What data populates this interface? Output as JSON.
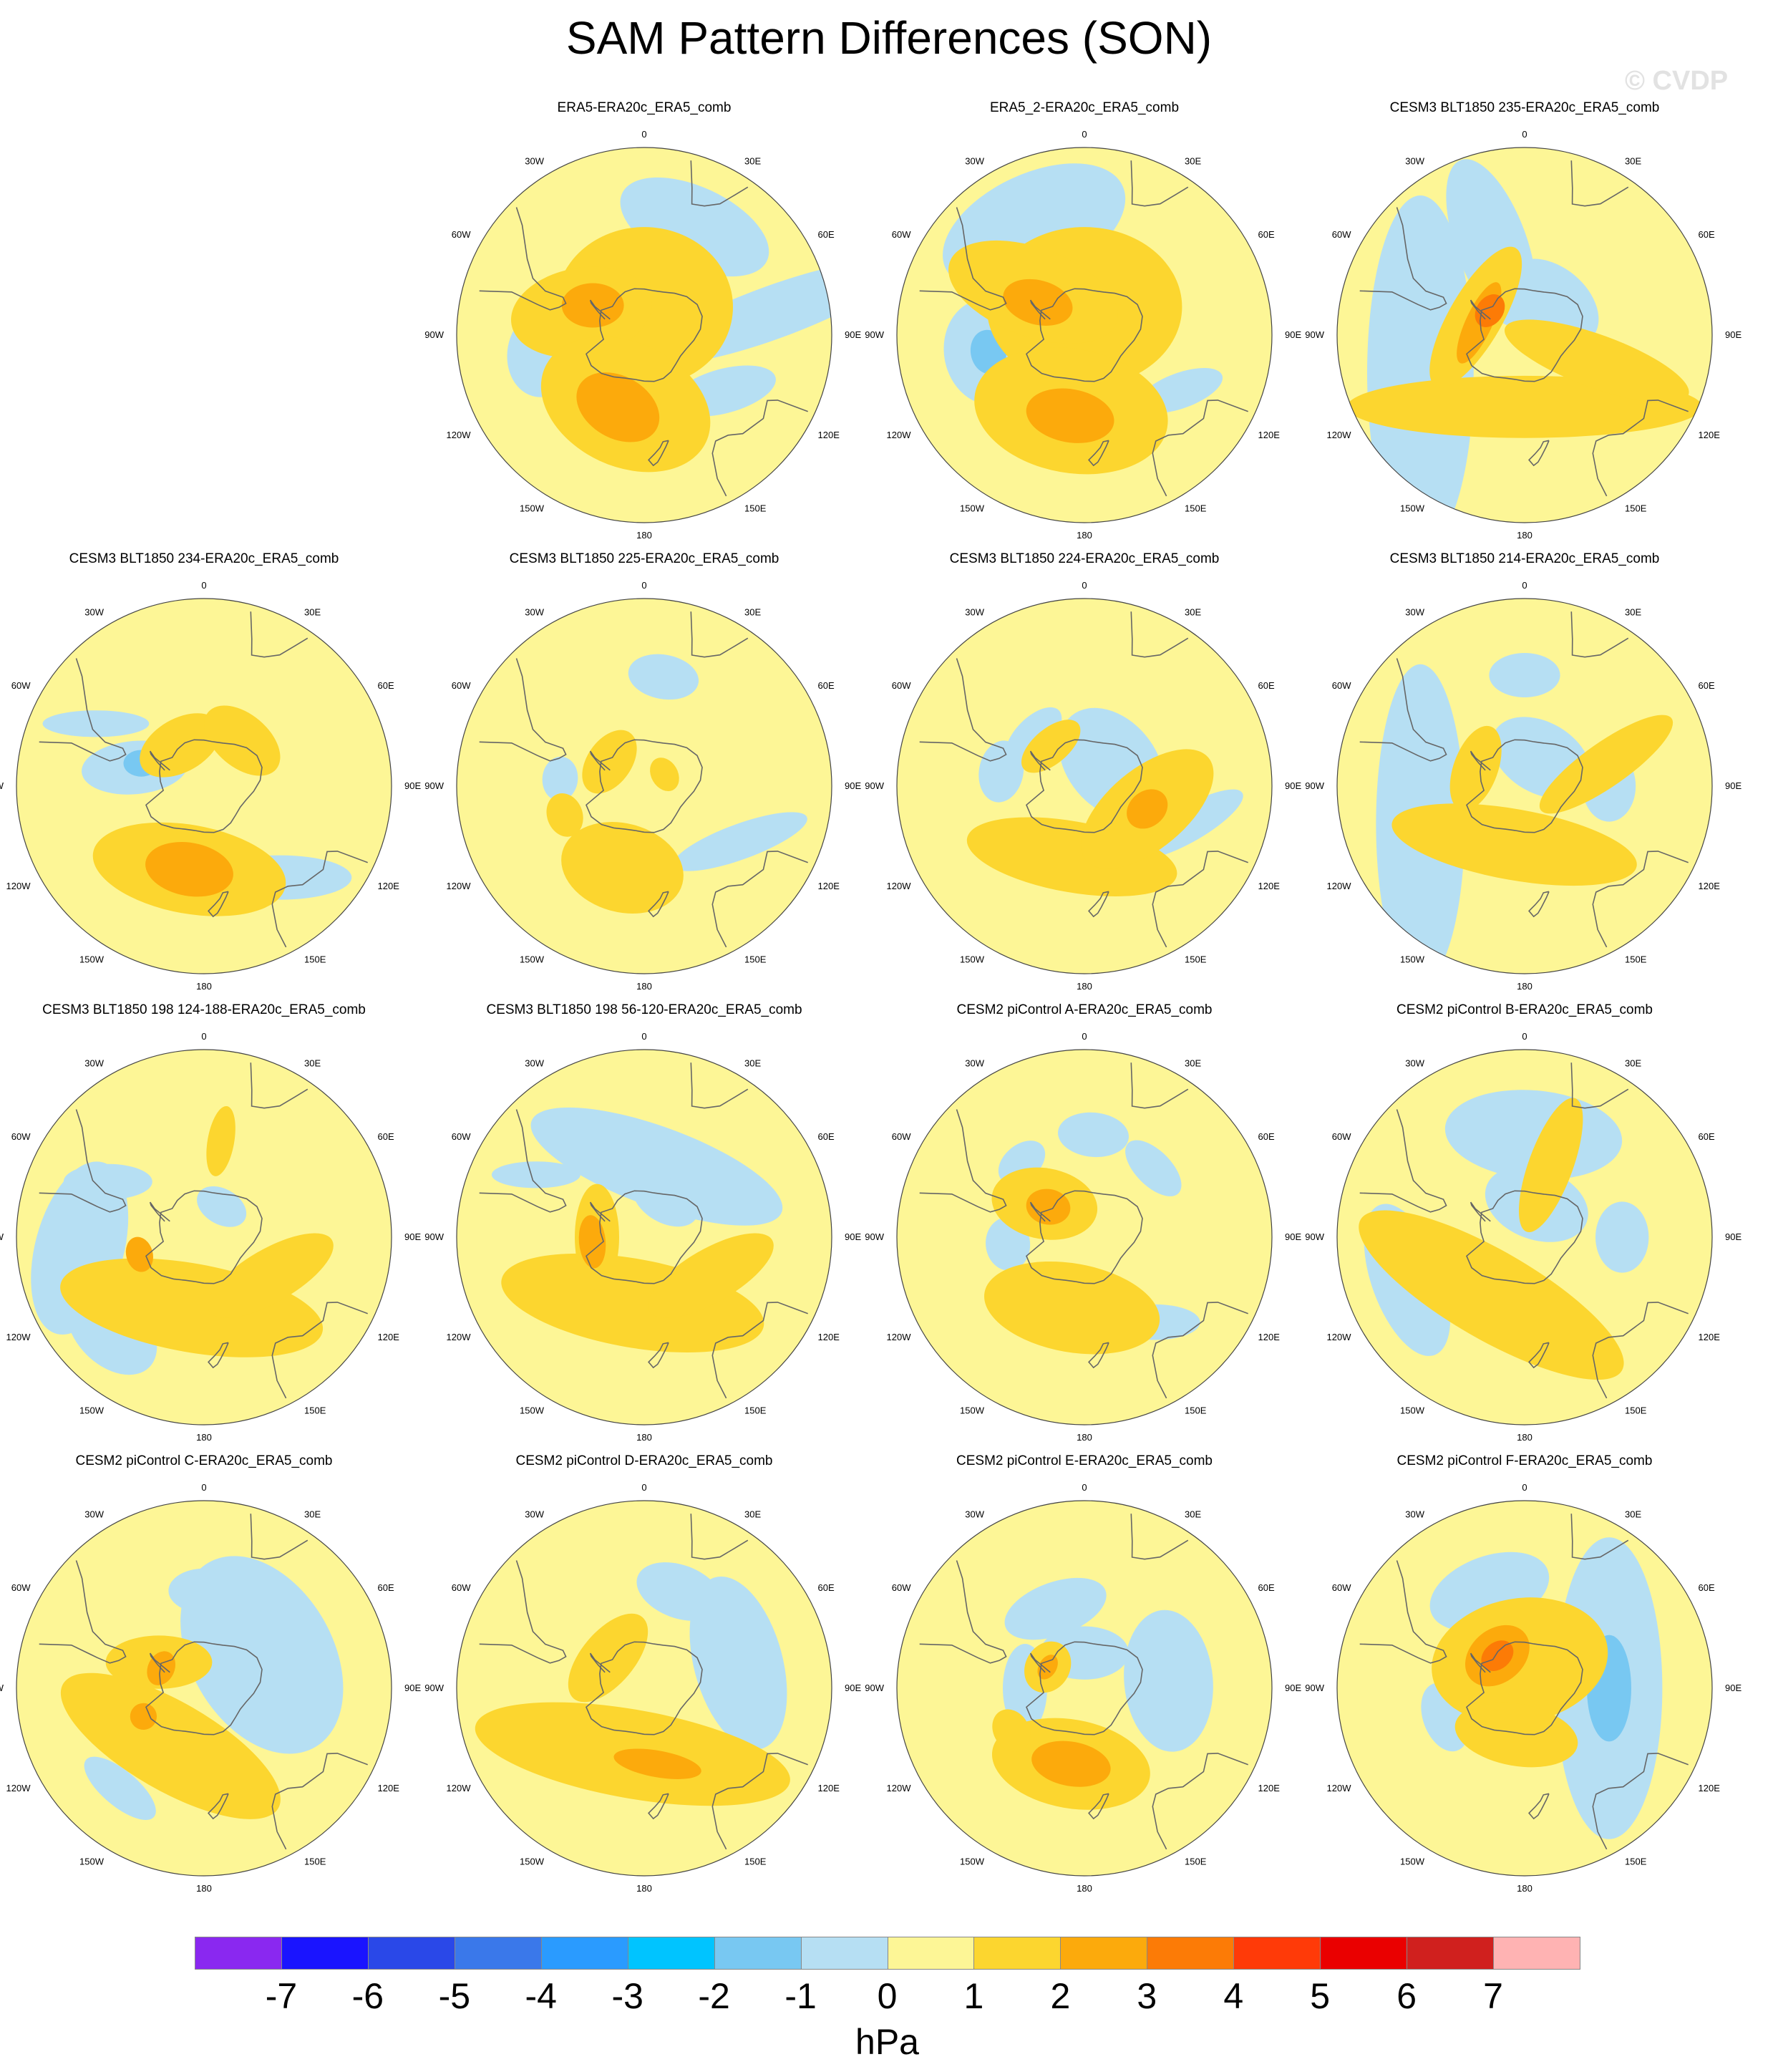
{
  "title": "SAM Pattern Differences (SON)",
  "watermark": "© CVDP",
  "longitude_labels": [
    "0",
    "30E",
    "60E",
    "90E",
    "120E",
    "150E",
    "180",
    "150W",
    "120W",
    "90W",
    "60W",
    "30W"
  ],
  "colors": {
    "below_neg7": "#8a28f0",
    "neg7_neg6": "#1a14ff",
    "neg6_neg5": "#2a48e8",
    "neg5_neg4": "#3a78ea",
    "neg4_neg3": "#2a9bff",
    "neg3_neg2": "#00c4ff",
    "neg2_neg1": "#78c8f2",
    "neg1_0": "#b6dff3",
    "zero_1": "#fdf696",
    "one_2": "#fcd62f",
    "two_3": "#fcaa0c",
    "three_4": "#fc7b06",
    "four_5": "#ff3a08",
    "five_6": "#ea0000",
    "six_7": "#d0201e",
    "above_7": "#ffb3b3",
    "continent": "#666666"
  },
  "colorbar": {
    "labels": [
      "-7",
      "-6",
      "-5",
      "-4",
      "-3",
      "-2",
      "-1",
      "0",
      "1",
      "2",
      "3",
      "4",
      "5",
      "6",
      "7"
    ],
    "units": "hPa"
  },
  "panels": [
    {
      "id": "p1",
      "title": "ERA5-ERA20c_ERA5_comb",
      "features": [
        {
          "lon": 25,
          "lat": -42,
          "a": 18,
          "b": 9,
          "rot": 0,
          "level": -1
        },
        {
          "lon": -100,
          "lat": -48,
          "a": 10,
          "b": 8,
          "rot": 20,
          "level": -1
        },
        {
          "lon": 125,
          "lat": -50,
          "a": 12,
          "b": 5,
          "rot": 40,
          "level": -1
        },
        {
          "lon": 80,
          "lat": -38,
          "a": 30,
          "b": 6,
          "rot": 80,
          "level": -1
        },
        {
          "lon": 0,
          "lat": -78,
          "a": 20,
          "b": 18,
          "rot": 0,
          "level": 1
        },
        {
          "lon": -70,
          "lat": -62,
          "a": 16,
          "b": 10,
          "rot": 60,
          "level": 1
        },
        {
          "lon": -165,
          "lat": -60,
          "a": 20,
          "b": 14,
          "rot": 10,
          "level": 1
        },
        {
          "lon": -60,
          "lat": -65,
          "a": 7,
          "b": 5,
          "rot": 60,
          "level": 2
        },
        {
          "lon": -160,
          "lat": -58,
          "a": 10,
          "b": 7,
          "rot": 10,
          "level": 2
        }
      ]
    },
    {
      "id": "p2",
      "title": "ERA5_2-ERA20c_ERA5_comb",
      "features": [
        {
          "lon": -25,
          "lat": -42,
          "a": 22,
          "b": 12,
          "rot": 0,
          "level": -1
        },
        {
          "lon": -100,
          "lat": -50,
          "a": 12,
          "b": 10,
          "rot": 0,
          "level": -1
        },
        {
          "lon": -100,
          "lat": -50,
          "a": 5,
          "b": 4,
          "rot": 0,
          "level": -2
        },
        {
          "lon": 120,
          "lat": -45,
          "a": 10,
          "b": 4,
          "rot": 40,
          "level": -1
        },
        {
          "lon": 0,
          "lat": -78,
          "a": 22,
          "b": 18,
          "rot": 0,
          "level": 1
        },
        {
          "lon": -50,
          "lat": -62,
          "a": 20,
          "b": 10,
          "rot": 70,
          "level": 1
        },
        {
          "lon": -170,
          "lat": -58,
          "a": 22,
          "b": 14,
          "rot": 0,
          "level": 1
        },
        {
          "lon": -55,
          "lat": -66,
          "a": 8,
          "b": 5,
          "rot": 70,
          "level": 2
        },
        {
          "lon": -170,
          "lat": -56,
          "a": 10,
          "b": 6,
          "rot": 0,
          "level": 2
        }
      ]
    },
    {
      "id": "p3",
      "title": "CESM3 BLT1850 235-ERA20c_ERA5_comb",
      "features": [
        {
          "lon": -110,
          "lat": -45,
          "a": 40,
          "b": 12,
          "rot": 20,
          "level": -1
        },
        {
          "lon": -20,
          "lat": -50,
          "a": 20,
          "b": 8,
          "rot": 90,
          "level": -1
        },
        {
          "lon": 40,
          "lat": -72,
          "a": 12,
          "b": 8,
          "rot": 0,
          "level": -1
        },
        {
          "lon": 180,
          "lat": -60,
          "a": 40,
          "b": 7,
          "rot": 0,
          "level": 1
        },
        {
          "lon": -70,
          "lat": -68,
          "a": 18,
          "b": 6,
          "rot": 10,
          "level": 1
        },
        {
          "lon": 110,
          "lat": -58,
          "a": 22,
          "b": 6,
          "rot": 90,
          "level": 1
        },
        {
          "lon": -75,
          "lat": -70,
          "a": 10,
          "b": 3,
          "rot": 10,
          "level": 2
        },
        {
          "lon": -55,
          "lat": -72,
          "a": 4,
          "b": 3,
          "rot": 0,
          "level": 3
        }
      ]
    },
    {
      "id": "p4",
      "title": "CESM3 BLT1850 234-ERA20c_ERA5_comb",
      "features": [
        {
          "lon": -75,
          "lat": -60,
          "a": 12,
          "b": 6,
          "rot": 70,
          "level": -1
        },
        {
          "lon": -70,
          "lat": -62,
          "a": 4,
          "b": 3,
          "rot": 70,
          "level": -2
        },
        {
          "lon": 140,
          "lat": -42,
          "a": 16,
          "b": 5,
          "rot": 40,
          "level": -1
        },
        {
          "lon": -60,
          "lat": -40,
          "a": 12,
          "b": 3,
          "rot": 60,
          "level": -1
        },
        {
          "lon": -170,
          "lat": -55,
          "a": 22,
          "b": 10,
          "rot": 0,
          "level": 1
        },
        {
          "lon": -30,
          "lat": -70,
          "a": 10,
          "b": 6,
          "rot": 0,
          "level": 1
        },
        {
          "lon": 40,
          "lat": -65,
          "a": 10,
          "b": 6,
          "rot": 0,
          "level": 1
        },
        {
          "lon": -170,
          "lat": -55,
          "a": 10,
          "b": 6,
          "rot": 0,
          "level": 2
        }
      ]
    },
    {
      "id": "p5",
      "title": "CESM3 BLT1850 225-ERA20c_ERA5_comb",
      "features": [
        {
          "lon": 10,
          "lat": -45,
          "a": 8,
          "b": 5,
          "rot": 0,
          "level": -1
        },
        {
          "lon": -85,
          "lat": -55,
          "a": 5,
          "b": 4,
          "rot": 0,
          "level": -1
        },
        {
          "lon": 120,
          "lat": -45,
          "a": 16,
          "b": 4,
          "rot": 40,
          "level": -1
        },
        {
          "lon": -55,
          "lat": -72,
          "a": 8,
          "b": 5,
          "rot": 0,
          "level": 1
        },
        {
          "lon": -165,
          "lat": -55,
          "a": 14,
          "b": 10,
          "rot": 0,
          "level": 1
        },
        {
          "lon": -110,
          "lat": -55,
          "a": 5,
          "b": 4,
          "rot": 0,
          "level": 1
        },
        {
          "lon": 60,
          "lat": -80,
          "a": 4,
          "b": 3,
          "rot": 0,
          "level": 1
        }
      ]
    },
    {
      "id": "p6",
      "title": "CESM3 BLT1850 224-ERA20c_ERA5_comb",
      "features": [
        {
          "lon": 50,
          "lat": -75,
          "a": 14,
          "b": 10,
          "rot": 0,
          "level": -1
        },
        {
          "lon": -80,
          "lat": -55,
          "a": 7,
          "b": 5,
          "rot": 0,
          "level": -1
        },
        {
          "lon": -45,
          "lat": -60,
          "a": 8,
          "b": 4,
          "rot": 0,
          "level": -1
        },
        {
          "lon": 110,
          "lat": -45,
          "a": 14,
          "b": 4,
          "rot": 40,
          "level": -1
        },
        {
          "lon": -170,
          "lat": -60,
          "a": 24,
          "b": 8,
          "rot": 0,
          "level": 1
        },
        {
          "lon": 110,
          "lat": -62,
          "a": 18,
          "b": 9,
          "rot": 30,
          "level": 1
        },
        {
          "lon": -40,
          "lat": -68,
          "a": 8,
          "b": 4,
          "rot": 0,
          "level": 1
        },
        {
          "lon": 110,
          "lat": -62,
          "a": 5,
          "b": 4,
          "rot": 30,
          "level": 2
        }
      ]
    },
    {
      "id": "p7",
      "title": "CESM3 BLT1850 214-ERA20c_ERA5_comb",
      "features": [
        {
          "lon": -110,
          "lat": -45,
          "a": 36,
          "b": 10,
          "rot": 20,
          "level": -1
        },
        {
          "lon": 0,
          "lat": -45,
          "a": 8,
          "b": 5,
          "rot": 0,
          "level": -1
        },
        {
          "lon": 30,
          "lat": -76,
          "a": 12,
          "b": 8,
          "rot": 0,
          "level": -1
        },
        {
          "lon": 90,
          "lat": -55,
          "a": 8,
          "b": 6,
          "rot": 0,
          "level": -1
        },
        {
          "lon": -170,
          "lat": -65,
          "a": 28,
          "b": 8,
          "rot": 0,
          "level": 1
        },
        {
          "lon": 75,
          "lat": -55,
          "a": 18,
          "b": 5,
          "rot": 70,
          "level": 1
        },
        {
          "lon": -70,
          "lat": -68,
          "a": 10,
          "b": 5,
          "rot": 0,
          "level": 1
        }
      ]
    },
    {
      "id": "p8",
      "title": "CESM3 BLT1850 198 124-188-ERA20c_ERA5_comb",
      "features": [
        {
          "lon": -95,
          "lat": -40,
          "a": 20,
          "b": 10,
          "rot": 20,
          "level": -1
        },
        {
          "lon": -135,
          "lat": -38,
          "a": 12,
          "b": 8,
          "rot": 0,
          "level": -1
        },
        {
          "lon": -60,
          "lat": -45,
          "a": 10,
          "b": 4,
          "rot": 60,
          "level": -1
        },
        {
          "lon": 30,
          "lat": -75,
          "a": 6,
          "b": 4,
          "rot": 0,
          "level": -1
        },
        {
          "lon": -170,
          "lat": -60,
          "a": 30,
          "b": 10,
          "rot": 0,
          "level": 1
        },
        {
          "lon": 120,
          "lat": -58,
          "a": 16,
          "b": 6,
          "rot": 30,
          "level": 1
        },
        {
          "lon": 10,
          "lat": -50,
          "a": 8,
          "b": 3,
          "rot": 90,
          "level": 1
        },
        {
          "lon": -105,
          "lat": -62,
          "a": 4,
          "b": 3,
          "rot": 0,
          "level": 2
        }
      ]
    },
    {
      "id": "p9",
      "title": "CESM3 BLT1850 198 56-120-ERA20c_ERA5_comb",
      "features": [
        {
          "lon": 10,
          "lat": -60,
          "a": 30,
          "b": 9,
          "rot": 10,
          "level": -1
        },
        {
          "lon": 30,
          "lat": -72,
          "a": 8,
          "b": 5,
          "rot": 0,
          "level": -1
        },
        {
          "lon": -60,
          "lat": -40,
          "a": 10,
          "b": 3,
          "rot": 60,
          "level": -1
        },
        {
          "lon": -170,
          "lat": -62,
          "a": 30,
          "b": 10,
          "rot": 0,
          "level": 1
        },
        {
          "lon": 120,
          "lat": -58,
          "a": 16,
          "b": 6,
          "rot": 30,
          "level": 1
        },
        {
          "lon": -90,
          "lat": -70,
          "a": 12,
          "b": 5,
          "rot": 0,
          "level": 1
        },
        {
          "lon": -95,
          "lat": -68,
          "a": 6,
          "b": 3,
          "rot": 0,
          "level": 2
        }
      ]
    },
    {
      "id": "p10",
      "title": "CESM2 piControl A-ERA20c_ERA5_comb",
      "features": [
        {
          "lon": 5,
          "lat": -48,
          "a": 8,
          "b": 5,
          "rot": 0,
          "level": -1
        },
        {
          "lon": -40,
          "lat": -50,
          "a": 6,
          "b": 4,
          "rot": 0,
          "level": -1
        },
        {
          "lon": -95,
          "lat": -58,
          "a": 6,
          "b": 5,
          "rot": 0,
          "level": -1
        },
        {
          "lon": 45,
          "lat": -50,
          "a": 8,
          "b": 4,
          "rot": 0,
          "level": -1
        },
        {
          "lon": 140,
          "lat": -45,
          "a": 10,
          "b": 4,
          "rot": 40,
          "level": -1
        },
        {
          "lon": -50,
          "lat": -68,
          "a": 12,
          "b": 8,
          "rot": 60,
          "level": 1
        },
        {
          "lon": -170,
          "lat": -60,
          "a": 20,
          "b": 10,
          "rot": 0,
          "level": 1
        },
        {
          "lon": -50,
          "lat": -70,
          "a": 5,
          "b": 4,
          "rot": 60,
          "level": 2
        }
      ]
    },
    {
      "id": "p11",
      "title": "CESM2 piControl B-ERA20c_ERA5_comb",
      "features": [
        {
          "lon": 5,
          "lat": -48,
          "a": 20,
          "b": 10,
          "rot": 0,
          "level": -1
        },
        {
          "lon": -110,
          "lat": -40,
          "a": 18,
          "b": 8,
          "rot": 0,
          "level": -1
        },
        {
          "lon": 90,
          "lat": -50,
          "a": 8,
          "b": 6,
          "rot": 0,
          "level": -1
        },
        {
          "lon": 20,
          "lat": -75,
          "a": 12,
          "b": 8,
          "rot": 0,
          "level": -1
        },
        {
          "lon": -150,
          "lat": -62,
          "a": 34,
          "b": 10,
          "rot": 0,
          "level": 1
        },
        {
          "lon": 20,
          "lat": -58,
          "a": 16,
          "b": 5,
          "rot": 90,
          "level": 1
        }
      ]
    },
    {
      "id": "p12",
      "title": "CESM2 piControl C-ERA20c_ERA5_comb",
      "features": [
        {
          "lon": 60,
          "lat": -62,
          "a": 24,
          "b": 16,
          "rot": 0,
          "level": -1
        },
        {
          "lon": 0,
          "lat": -50,
          "a": 8,
          "b": 5,
          "rot": 0,
          "level": -1
        },
        {
          "lon": -140,
          "lat": -38,
          "a": 10,
          "b": 4,
          "rot": 0,
          "level": -1
        },
        {
          "lon": -150,
          "lat": -62,
          "a": 28,
          "b": 10,
          "rot": 0,
          "level": 1
        },
        {
          "lon": -60,
          "lat": -68,
          "a": 12,
          "b": 6,
          "rot": 60,
          "level": 1
        },
        {
          "lon": -65,
          "lat": -70,
          "a": 4,
          "b": 3,
          "rot": 0,
          "level": 2
        },
        {
          "lon": -115,
          "lat": -62,
          "a": 3,
          "b": 3,
          "rot": 0,
          "level": 2
        }
      ]
    },
    {
      "id": "p13",
      "title": "CESM2 piControl D-ERA20c_ERA5_comb",
      "features": [
        {
          "lon": 20,
          "lat": -48,
          "a": 10,
          "b": 6,
          "rot": 0,
          "level": -1
        },
        {
          "lon": 75,
          "lat": -50,
          "a": 20,
          "b": 10,
          "rot": 0,
          "level": -1
        },
        {
          "lon": -170,
          "lat": -62,
          "a": 36,
          "b": 10,
          "rot": 0,
          "level": 1
        },
        {
          "lon": -50,
          "lat": -70,
          "a": 12,
          "b": 6,
          "rot": 0,
          "level": 1
        },
        {
          "lon": 170,
          "lat": -58,
          "a": 10,
          "b": 3,
          "rot": 20,
          "level": 2
        }
      ]
    },
    {
      "id": "p14",
      "title": "CESM2 piControl E-ERA20c_ERA5_comb",
      "features": [
        {
          "lon": -20,
          "lat": -55,
          "a": 12,
          "b": 6,
          "rot": 0,
          "level": -1
        },
        {
          "lon": 85,
          "lat": -55,
          "a": 16,
          "b": 10,
          "rot": 0,
          "level": -1
        },
        {
          "lon": 0,
          "lat": -75,
          "a": 10,
          "b": 6,
          "rot": 0,
          "level": -1
        },
        {
          "lon": -90,
          "lat": -65,
          "a": 10,
          "b": 5,
          "rot": 0,
          "level": -1
        },
        {
          "lon": -170,
          "lat": -58,
          "a": 18,
          "b": 10,
          "rot": 0,
          "level": 1
        },
        {
          "lon": -60,
          "lat": -72,
          "a": 6,
          "b": 5,
          "rot": 0,
          "level": 1
        },
        {
          "lon": -120,
          "lat": -55,
          "a": 5,
          "b": 4,
          "rot": 0,
          "level": 1
        },
        {
          "lon": -170,
          "lat": -58,
          "a": 9,
          "b": 5,
          "rot": 0,
          "level": 2
        },
        {
          "lon": -60,
          "lat": -72,
          "a": 3,
          "b": 2,
          "rot": 0,
          "level": 2
        }
      ]
    },
    {
      "id": "p15",
      "title": "CESM2 piControl F-ERA20c_ERA5_comb",
      "features": [
        {
          "lon": 90,
          "lat": -55,
          "a": 34,
          "b": 12,
          "rot": 0,
          "level": -1
        },
        {
          "lon": 90,
          "lat": -55,
          "a": 12,
          "b": 5,
          "rot": 0,
          "level": -2
        },
        {
          "lon": -20,
          "lat": -48,
          "a": 14,
          "b": 8,
          "rot": 0,
          "level": -1
        },
        {
          "lon": -110,
          "lat": -55,
          "a": 8,
          "b": 5,
          "rot": 0,
          "level": -1
        },
        {
          "lon": -10,
          "lat": -78,
          "a": 20,
          "b": 14,
          "rot": 0,
          "level": 1
        },
        {
          "lon": -170,
          "lat": -70,
          "a": 14,
          "b": 7,
          "rot": 0,
          "level": 1
        },
        {
          "lon": -40,
          "lat": -72,
          "a": 8,
          "b": 6,
          "rot": 0,
          "level": 2
        },
        {
          "lon": -40,
          "lat": -72,
          "a": 4,
          "b": 3,
          "rot": 0,
          "level": 3
        }
      ]
    }
  ]
}
